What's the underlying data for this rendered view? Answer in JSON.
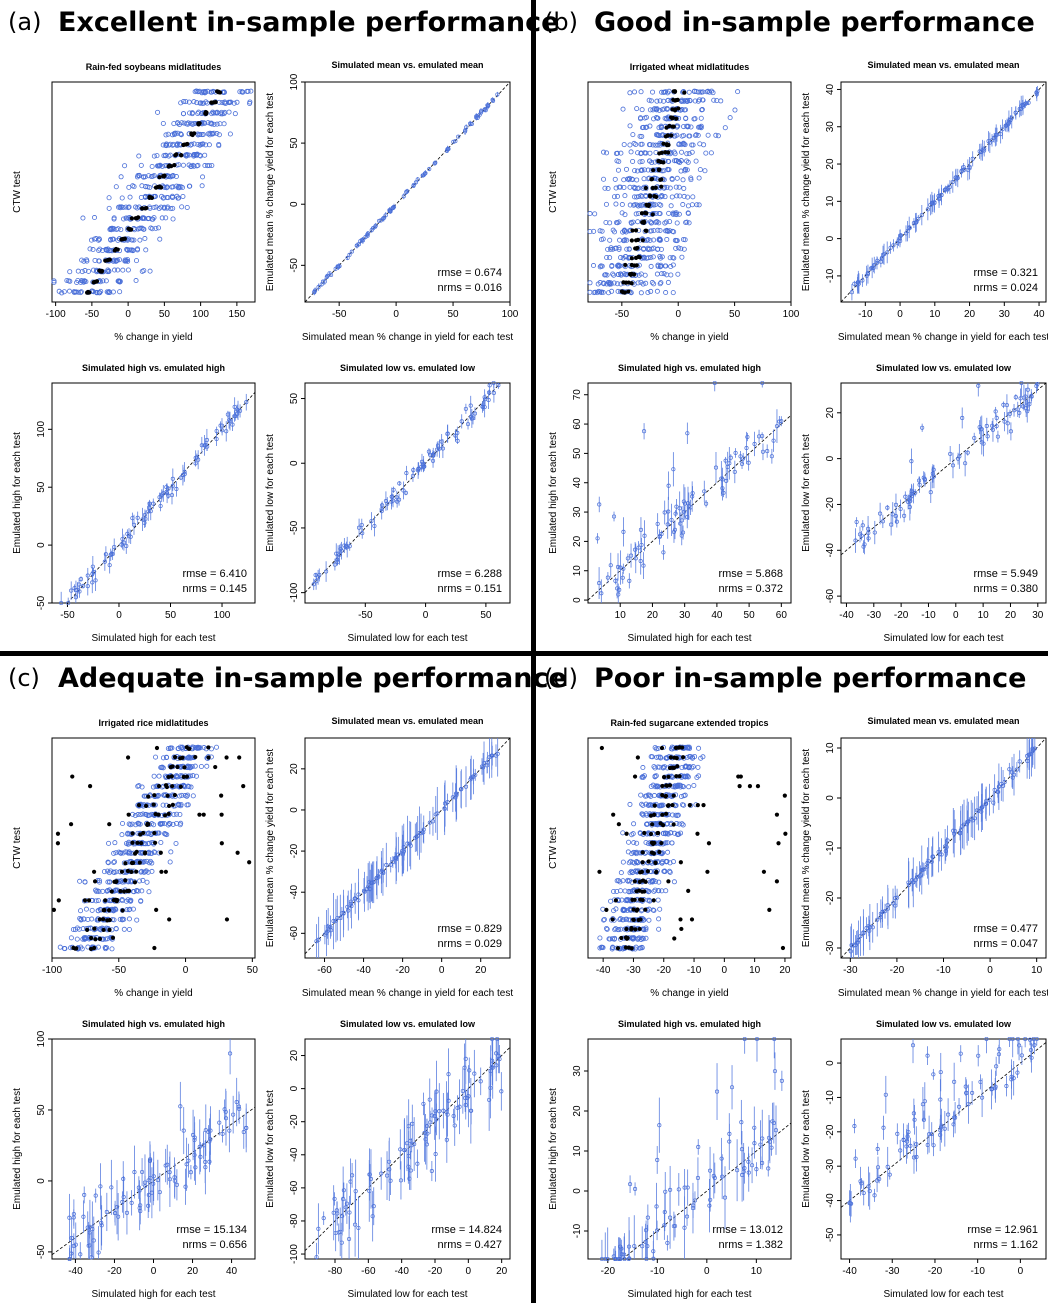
{
  "figure": {
    "colors": {
      "open_marker": "#4a6fd8",
      "filled_marker": "#000000",
      "error_bar": "#5b7fe0",
      "ref_line": "#000000",
      "divider": "#000000"
    },
    "quadrants": [
      {
        "letter": "(a)",
        "title": "Excellent in-sample performance",
        "panels": [
          {
            "type": "scatter",
            "kind": "ctw",
            "title": "Rain-fed soybeans midlatitudes",
            "xlabel": "% change in yield",
            "ylabel": "CTW test",
            "xlim": [
              -105,
              175
            ],
            "xticks": [
              -100,
              -50,
              0,
              50,
              100,
              150
            ],
            "seed": 11,
            "spread": 70,
            "slope": 0.72,
            "spread_filled": 12,
            "n_levels": 20,
            "n_filled_outliers": 0
          },
          {
            "type": "errscatter",
            "title": "Simulated mean vs. emulated mean",
            "xlabel": "Simulated mean % change in yield for each test",
            "ylabel": "Emulated mean % change yield for each test",
            "xlim": [
              -80,
              100
            ],
            "ylim": [
              -80,
              100
            ],
            "xticks": [
              -50,
              0,
              50,
              100
            ],
            "yticks": [
              -50,
              0,
              50,
              100
            ],
            "rmse": "rmse = 0.674",
            "nrms": "nrms = 0.016",
            "seed": 21,
            "n": 90,
            "noise": 1.0,
            "err": 1.5,
            "outlier_frac": 0
          },
          {
            "type": "errscatter",
            "title": "Simulated high vs. emulated high",
            "xlabel": "Simulated high for each test",
            "ylabel": "Emulated high for each test",
            "xlim": [
              -65,
              132
            ],
            "ylim": [
              -50,
              140
            ],
            "xticks": [
              -50,
              0,
              50,
              100
            ],
            "yticks": [
              -50,
              0,
              50,
              100
            ],
            "rmse": "rmse = 6.410",
            "nrms": "nrms = 0.145",
            "seed": 31,
            "n": 90,
            "noise": 5,
            "err": 5,
            "outlier_frac": 0
          },
          {
            "type": "errscatter",
            "title": "Simulated low vs. emulated low",
            "xlabel": "Simulated low for each test",
            "ylabel": "Emulated low for each test",
            "xlim": [
              -100,
              70
            ],
            "ylim": [
              -108,
              62
            ],
            "xticks": [
              -50,
              0,
              50
            ],
            "yticks": [
              -100,
              -50,
              0,
              50
            ],
            "rmse": "rmse = 6.288",
            "nrms": "nrms = 0.151",
            "seed": 41,
            "n": 90,
            "noise": 5,
            "err": 4,
            "outlier_frac": 0
          }
        ]
      },
      {
        "letter": "(b)",
        "title": "Good in-sample performance",
        "panels": [
          {
            "type": "scatter",
            "kind": "ctw",
            "title": "Irrigated wheat midlatitudes",
            "xlabel": "% change in yield",
            "ylabel": "CTW test",
            "xlim": [
              -80,
              100
            ],
            "xticks": [
              -50,
              0,
              50,
              100
            ],
            "seed": 12,
            "spread": 60,
            "slope": 0.3,
            "spread_filled": 14,
            "n_levels": 24,
            "n_filled_outliers": 0
          },
          {
            "type": "errscatter",
            "title": "Simulated mean vs. emulated mean",
            "xlabel": "Simulated mean % change in yield for each test",
            "ylabel": "Emulated mean % change yield for each test",
            "xlim": [
              -17,
              42
            ],
            "ylim": [
              -17,
              42
            ],
            "xticks": [
              -10,
              0,
              10,
              20,
              30,
              40
            ],
            "yticks": [
              -10,
              0,
              10,
              20,
              30,
              40
            ],
            "rmse": "rmse = 0.321",
            "nrms": "nrms = 0.024",
            "seed": 22,
            "n": 110,
            "noise": 0.6,
            "err": 1.5,
            "outlier_frac": 0
          },
          {
            "type": "errscatter",
            "title": "Simulated high vs. emulated high",
            "xlabel": "Simulated high for each test",
            "ylabel": "Emulated high for each test",
            "xlim": [
              0,
              63
            ],
            "ylim": [
              -1,
              74
            ],
            "xticks": [
              10,
              20,
              30,
              40,
              50,
              60
            ],
            "yticks": [
              0,
              10,
              20,
              30,
              40,
              50,
              60,
              70
            ],
            "rmse": "rmse = 5.868",
            "nrms": "nrms = 0.372",
            "seed": 32,
            "n": 90,
            "noise": 5,
            "err": 3,
            "outlier_frac": 0.1
          },
          {
            "type": "errscatter",
            "title": "Simulated low vs. emulated low",
            "xlabel": "Simulated low for each test",
            "ylabel": "Emulated low for each test",
            "xlim": [
              -42,
              33
            ],
            "ylim": [
              -63,
              33
            ],
            "xticks": [
              -40,
              -30,
              -20,
              -10,
              0,
              10,
              20,
              30
            ],
            "yticks": [
              -60,
              -40,
              -20,
              0,
              20
            ],
            "rmse": "rmse = 5.949",
            "nrms": "nrms = 0.380",
            "seed": 42,
            "n": 90,
            "noise": 5,
            "err": 3,
            "outlier_frac": 0.1
          }
        ]
      },
      {
        "letter": "(c)",
        "title": "Adequate in-sample performance",
        "panels": [
          {
            "type": "scatter",
            "kind": "ctw",
            "title": "Irrigated rice midlatitudes",
            "xlabel": "% change in yield",
            "ylabel": "CTW test",
            "xlim": [
              -100,
              52
            ],
            "xticks": [
              -100,
              -50,
              0,
              50
            ],
            "seed": 13,
            "spread": 30,
            "slope": 0.55,
            "spread_filled": 30,
            "n_levels": 22,
            "n_filled_outliers": 40
          },
          {
            "type": "errscatter",
            "title": "Simulated mean vs. emulated mean",
            "xlabel": "Simulated mean % change in yield for each test",
            "ylabel": "Emulated mean % change yield for each test",
            "xlim": [
              -70,
              35
            ],
            "ylim": [
              -72,
              35
            ],
            "xticks": [
              -60,
              -40,
              -20,
              0,
              20
            ],
            "yticks": [
              -60,
              -40,
              -20,
              0,
              20
            ],
            "rmse": "rmse = 0.829",
            "nrms": "nrms = 0.029",
            "seed": 23,
            "n": 100,
            "noise": 1.5,
            "err": 7,
            "outlier_frac": 0
          },
          {
            "type": "errscatter",
            "title": "Simulated high vs. emulated high",
            "xlabel": "Simulated high for each test",
            "ylabel": "Emulated high for each test",
            "xlim": [
              -52,
              52
            ],
            "ylim": [
              -55,
              100
            ],
            "xticks": [
              -40,
              -20,
              0,
              20,
              40
            ],
            "yticks": [
              -50,
              0,
              50,
              100
            ],
            "rmse": "rmse = 15.134",
            "nrms": "nrms = 0.656",
            "seed": 33,
            "n": 100,
            "noise": 15,
            "err": 10,
            "outlier_frac": 0.05
          },
          {
            "type": "errscatter",
            "title": "Simulated low vs. emulated low",
            "xlabel": "Simulated low for each test",
            "ylabel": "Emulated low for each test",
            "xlim": [
              -98,
              25
            ],
            "ylim": [
              -103,
              30
            ],
            "xticks": [
              -80,
              -60,
              -40,
              -20,
              0,
              20
            ],
            "yticks": [
              -100,
              -80,
              -60,
              -40,
              -20,
              0,
              20
            ],
            "rmse": "rmse = 14.824",
            "nrms": "nrms = 0.427",
            "seed": 43,
            "n": 100,
            "noise": 14,
            "err": 10,
            "outlier_frac": 0.05
          }
        ]
      },
      {
        "letter": "(d)",
        "title": "Poor in-sample performance",
        "panels": [
          {
            "type": "scatter",
            "kind": "ctw",
            "title": "Rain-fed sugarcane extended tropics",
            "xlabel": "% change in yield",
            "ylabel": "CTW test",
            "xlim": [
              -45,
              22
            ],
            "xticks": [
              -40,
              -30,
              -20,
              -10,
              0,
              10,
              20
            ],
            "seed": 14,
            "spread": 12,
            "slope": 0.3,
            "spread_filled": 8,
            "n_levels": 22,
            "n_filled_outliers": 40
          },
          {
            "type": "errscatter",
            "title": "Simulated mean vs. emulated mean",
            "xlabel": "Simulated mean % change in yield for each test",
            "ylabel": "Emulated mean % change yield for each test",
            "xlim": [
              -32,
              12
            ],
            "ylim": [
              -32,
              12
            ],
            "xticks": [
              -30,
              -20,
              -10,
              0,
              10
            ],
            "yticks": [
              -30,
              -20,
              -10,
              0,
              10
            ],
            "rmse": "rmse = 0.477",
            "nrms": "nrms = 0.047",
            "seed": 24,
            "n": 100,
            "noise": 0.8,
            "err": 2.5,
            "outlier_frac": 0
          },
          {
            "type": "errscatter",
            "title": "Simulated high vs. emulated high",
            "xlabel": "Simulated high for each test",
            "ylabel": "Emulated high for each test",
            "xlim": [
              -24,
              17
            ],
            "ylim": [
              -17,
              38
            ],
            "xticks": [
              -20,
              -10,
              0,
              10
            ],
            "yticks": [
              -10,
              0,
              10,
              20,
              30
            ],
            "rmse": "rmse = 13.012",
            "nrms": "nrms = 1.382",
            "seed": 34,
            "n": 90,
            "noise": 4,
            "err": 4,
            "outlier_frac": 0.35
          },
          {
            "type": "errscatter",
            "title": "Simulated low vs. emulated low",
            "xlabel": "Simulated low for each test",
            "ylabel": "Emulated low for each test",
            "xlim": [
              -42,
              6
            ],
            "ylim": [
              -57,
              7
            ],
            "xticks": [
              -40,
              -30,
              -20,
              -10,
              0
            ],
            "yticks": [
              -50,
              -40,
              -30,
              -20,
              -10,
              0
            ],
            "rmse": "rmse = 12.961",
            "nrms": "nrms =  1.162",
            "seed": 44,
            "n": 90,
            "noise": 4,
            "err": 3,
            "outlier_frac": 0.4
          }
        ]
      }
    ]
  },
  "chart_data": [
    {
      "type": "scatter",
      "title": "Rain-fed soybeans midlatitudes",
      "xlabel": "% change in yield",
      "ylabel": "CTW test",
      "xlim": [
        -105,
        175
      ]
    },
    {
      "type": "scatter",
      "title": "Simulated mean vs. emulated mean",
      "xlabel": "Simulated mean % change in yield for each test",
      "ylabel": "Emulated mean % change yield for each test",
      "xlim": [
        -80,
        100
      ],
      "ylim": [
        -80,
        100
      ],
      "rmse": 0.674,
      "nrms": 0.016
    },
    {
      "type": "scatter",
      "title": "Simulated high vs. emulated high",
      "xlim": [
        -65,
        132
      ],
      "ylim": [
        -50,
        140
      ],
      "rmse": 6.41,
      "nrms": 0.145
    },
    {
      "type": "scatter",
      "title": "Simulated low vs. emulated low",
      "xlim": [
        -100,
        70
      ],
      "ylim": [
        -108,
        62
      ],
      "rmse": 6.288,
      "nrms": 0.151
    },
    {
      "type": "scatter",
      "title": "Irrigated wheat midlatitudes",
      "xlabel": "% change in yield",
      "ylabel": "CTW test",
      "xlim": [
        -80,
        100
      ]
    },
    {
      "type": "scatter",
      "title": "Simulated mean vs. emulated mean",
      "xlim": [
        -17,
        42
      ],
      "ylim": [
        -17,
        42
      ],
      "rmse": 0.321,
      "nrms": 0.024
    },
    {
      "type": "scatter",
      "title": "Simulated high vs. emulated high",
      "xlim": [
        0,
        63
      ],
      "ylim": [
        -1,
        74
      ],
      "rmse": 5.868,
      "nrms": 0.372
    },
    {
      "type": "scatter",
      "title": "Simulated low vs. emulated low",
      "xlim": [
        -42,
        33
      ],
      "ylim": [
        -63,
        33
      ],
      "rmse": 5.949,
      "nrms": 0.38
    },
    {
      "type": "scatter",
      "title": "Irrigated rice midlatitudes",
      "xlabel": "% change in yield",
      "ylabel": "CTW test",
      "xlim": [
        -100,
        52
      ]
    },
    {
      "type": "scatter",
      "title": "Simulated mean vs. emulated mean",
      "xlim": [
        -70,
        35
      ],
      "ylim": [
        -72,
        35
      ],
      "rmse": 0.829,
      "nrms": 0.029
    },
    {
      "type": "scatter",
      "title": "Simulated high vs. emulated high",
      "xlim": [
        -52,
        52
      ],
      "ylim": [
        -55,
        100
      ],
      "rmse": 15.134,
      "nrms": 0.656
    },
    {
      "type": "scatter",
      "title": "Simulated low vs. emulated low",
      "xlim": [
        -98,
        25
      ],
      "ylim": [
        -103,
        30
      ],
      "rmse": 14.824,
      "nrms": 0.427
    },
    {
      "type": "scatter",
      "title": "Rain-fed sugarcane extended tropics",
      "xlabel": "% change in yield",
      "ylabel": "CTW test",
      "xlim": [
        -45,
        22
      ]
    },
    {
      "type": "scatter",
      "title": "Simulated mean vs. emulated mean",
      "xlim": [
        -32,
        12
      ],
      "ylim": [
        -32,
        12
      ],
      "rmse": 0.477,
      "nrms": 0.047
    },
    {
      "type": "scatter",
      "title": "Simulated high vs. emulated high",
      "xlim": [
        -24,
        17
      ],
      "ylim": [
        -17,
        38
      ],
      "rmse": 13.012,
      "nrms": 1.382
    },
    {
      "type": "scatter",
      "title": "Simulated low vs. emulated low",
      "xlim": [
        -42,
        6
      ],
      "ylim": [
        -57,
        7
      ],
      "rmse": 12.961,
      "nrms": 1.162
    }
  ]
}
